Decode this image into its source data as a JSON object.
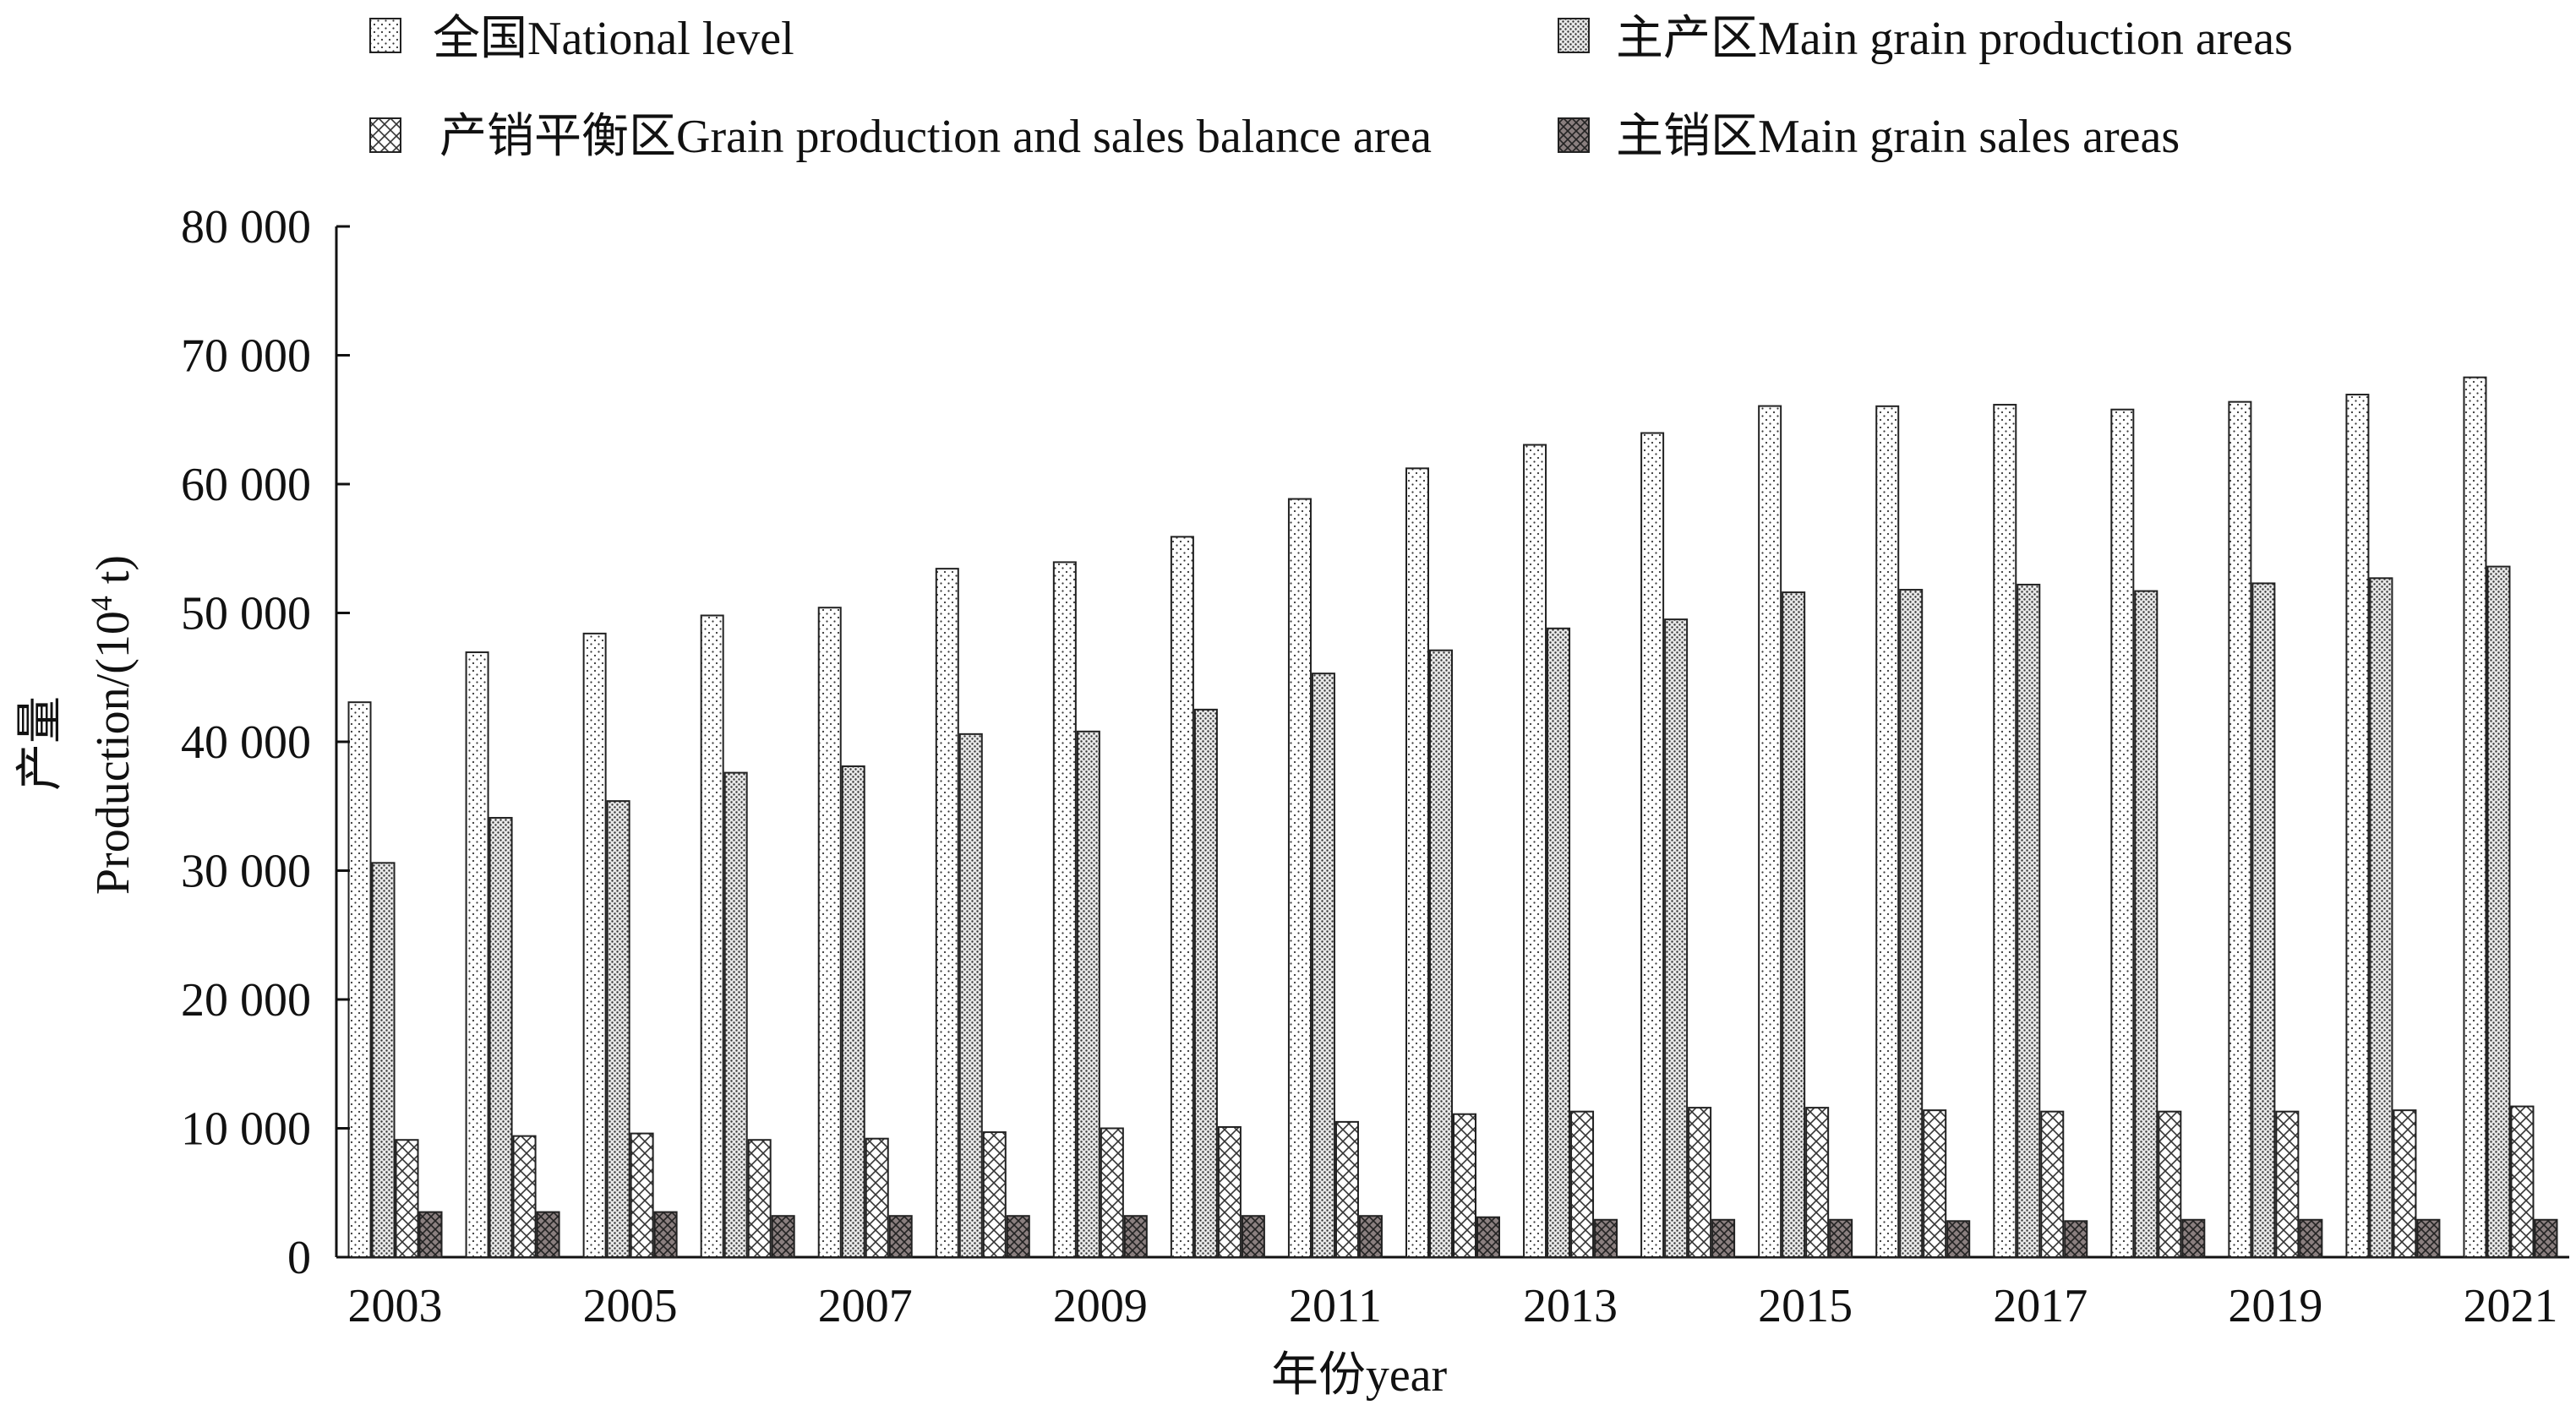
{
  "chart_data": {
    "type": "bar",
    "categories": [
      "2003",
      "2004",
      "2005",
      "2006",
      "2007",
      "2008",
      "2009",
      "2010",
      "2011",
      "2012",
      "2013",
      "2014",
      "2015",
      "2016",
      "2017",
      "2018",
      "2019",
      "2020",
      "2021"
    ],
    "x_tick_labels": [
      "2003",
      "2005",
      "2007",
      "2009",
      "2011",
      "2013",
      "2015",
      "2017",
      "2019",
      "2021"
    ],
    "series": [
      {
        "name": "全国National level",
        "pattern": "sparse-dots",
        "values": [
          43070,
          46947,
          48402,
          49804,
          50413,
          53434,
          53941,
          55911,
          58849,
          61223,
          63048,
          63965,
          66060,
          66044,
          66161,
          65789,
          66384,
          66949,
          68285
        ]
      },
      {
        "name": "主产区Main grain production areas",
        "pattern": "dense-dots",
        "values": [
          30600,
          34100,
          35400,
          37600,
          38100,
          40600,
          40800,
          42500,
          45300,
          47100,
          48800,
          49500,
          51600,
          51800,
          52200,
          51700,
          52300,
          52700,
          53600
        ]
      },
      {
        "name": "产销平衡区Grain production and sales balance area",
        "pattern": "crosshatch",
        "values": [
          9100,
          9400,
          9600,
          9100,
          9200,
          9700,
          10000,
          10100,
          10500,
          11100,
          11300,
          11600,
          11600,
          11400,
          11300,
          11300,
          11300,
          11400,
          11700
        ]
      },
      {
        "name": "主销区Main grain sales areas",
        "pattern": "dark-crosshatch",
        "values": [
          3500,
          3500,
          3500,
          3200,
          3200,
          3200,
          3200,
          3200,
          3200,
          3100,
          2900,
          2900,
          2900,
          2800,
          2800,
          2900,
          2900,
          2900,
          2900
        ]
      }
    ],
    "ylim": [
      0,
      80000
    ],
    "y_ticks": [
      "0",
      "10 000",
      "20 000",
      "30 000",
      "40 000",
      "50 000",
      "60 000",
      "70 000",
      "80 000"
    ],
    "ylabel_cn": "产量",
    "ylabel_en": "Production/(10",
    "ylabel_sup": "4",
    "ylabel_unit": " t)",
    "xlabel": "年份year",
    "legend_position": "top",
    "grid": false
  },
  "colors": {
    "axis": "#111111",
    "bar_stroke": "#222222",
    "dark_fill": "#8a7f7f"
  }
}
